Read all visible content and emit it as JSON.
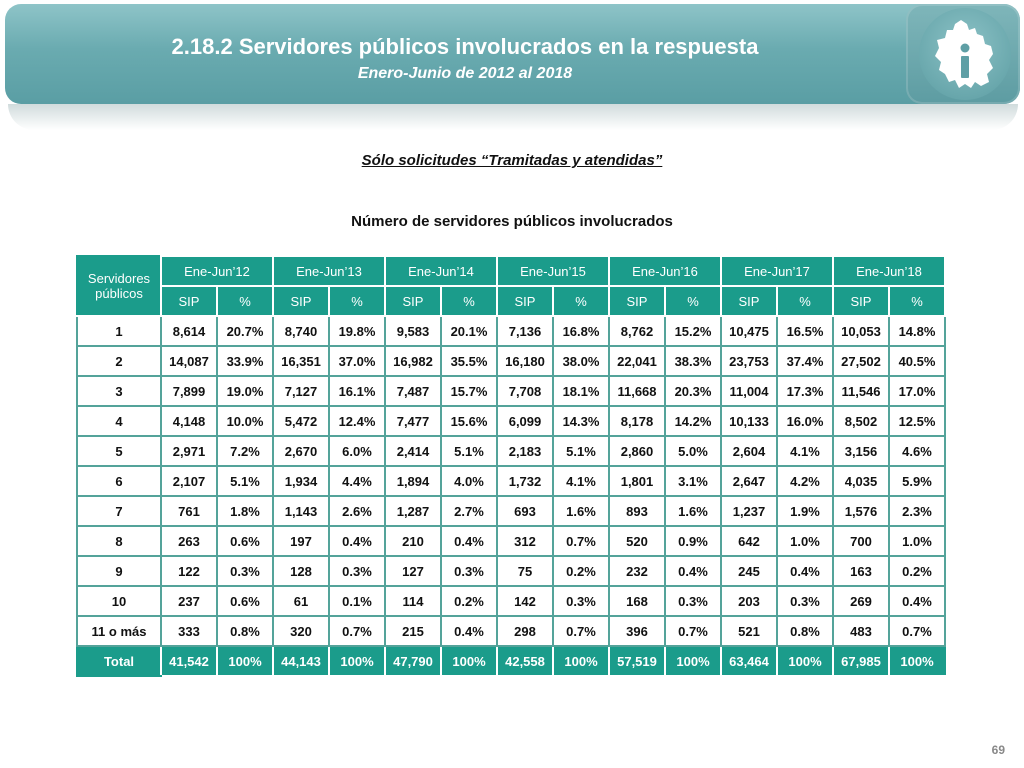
{
  "header": {
    "title": "2.18.2 Servidores públicos involucrados en la respuesta",
    "subtitle": "Enero-Junio de 2012 al 2018",
    "logo_icon": "cdmx-map-logo-icon"
  },
  "note": "Sólo solicitudes “Tramitadas y atendidas”",
  "table_caption": "Número de servidores públicos involucrados",
  "table": {
    "row_header": "Servidores públicos",
    "periods": [
      "Ene-Jun’12",
      "Ene-Jun’13",
      "Ene-Jun’14",
      "Ene-Jun’15",
      "Ene-Jun’16",
      "Ene-Jun’17",
      "Ene-Jun’18"
    ],
    "sub_headers": [
      "SIP",
      "%"
    ],
    "rows": [
      {
        "label": "1",
        "cells": [
          "8,614",
          "20.7%",
          "8,740",
          "19.8%",
          "9,583",
          "20.1%",
          "7,136",
          "16.8%",
          "8,762",
          "15.2%",
          "10,475",
          "16.5%",
          "10,053",
          "14.8%"
        ]
      },
      {
        "label": "2",
        "cells": [
          "14,087",
          "33.9%",
          "16,351",
          "37.0%",
          "16,982",
          "35.5%",
          "16,180",
          "38.0%",
          "22,041",
          "38.3%",
          "23,753",
          "37.4%",
          "27,502",
          "40.5%"
        ]
      },
      {
        "label": "3",
        "cells": [
          "7,899",
          "19.0%",
          "7,127",
          "16.1%",
          "7,487",
          "15.7%",
          "7,708",
          "18.1%",
          "11,668",
          "20.3%",
          "11,004",
          "17.3%",
          "11,546",
          "17.0%"
        ]
      },
      {
        "label": "4",
        "cells": [
          "4,148",
          "10.0%",
          "5,472",
          "12.4%",
          "7,477",
          "15.6%",
          "6,099",
          "14.3%",
          "8,178",
          "14.2%",
          "10,133",
          "16.0%",
          "8,502",
          "12.5%"
        ]
      },
      {
        "label": "5",
        "cells": [
          "2,971",
          "7.2%",
          "2,670",
          "6.0%",
          "2,414",
          "5.1%",
          "2,183",
          "5.1%",
          "2,860",
          "5.0%",
          "2,604",
          "4.1%",
          "3,156",
          "4.6%"
        ]
      },
      {
        "label": "6",
        "cells": [
          "2,107",
          "5.1%",
          "1,934",
          "4.4%",
          "1,894",
          "4.0%",
          "1,732",
          "4.1%",
          "1,801",
          "3.1%",
          "2,647",
          "4.2%",
          "4,035",
          "5.9%"
        ]
      },
      {
        "label": "7",
        "cells": [
          "761",
          "1.8%",
          "1,143",
          "2.6%",
          "1,287",
          "2.7%",
          "693",
          "1.6%",
          "893",
          "1.6%",
          "1,237",
          "1.9%",
          "1,576",
          "2.3%"
        ]
      },
      {
        "label": "8",
        "cells": [
          "263",
          "0.6%",
          "197",
          "0.4%",
          "210",
          "0.4%",
          "312",
          "0.7%",
          "520",
          "0.9%",
          "642",
          "1.0%",
          "700",
          "1.0%"
        ]
      },
      {
        "label": "9",
        "cells": [
          "122",
          "0.3%",
          "128",
          "0.3%",
          "127",
          "0.3%",
          "75",
          "0.2%",
          "232",
          "0.4%",
          "245",
          "0.4%",
          "163",
          "0.2%"
        ]
      },
      {
        "label": "10",
        "cells": [
          "237",
          "0.6%",
          "61",
          "0.1%",
          "114",
          "0.2%",
          "142",
          "0.3%",
          "168",
          "0.3%",
          "203",
          "0.3%",
          "269",
          "0.4%"
        ]
      },
      {
        "label": "11 o más",
        "cells": [
          "333",
          "0.8%",
          "320",
          "0.7%",
          "215",
          "0.4%",
          "298",
          "0.7%",
          "396",
          "0.7%",
          "521",
          "0.8%",
          "483",
          "0.7%"
        ]
      }
    ],
    "total": {
      "label": "Total",
      "cells": [
        "41,542",
        "100%",
        "44,143",
        "100%",
        "47,790",
        "100%",
        "42,558",
        "100%",
        "57,519",
        "100%",
        "63,464",
        "100%",
        "67,985",
        "100%"
      ]
    }
  },
  "page_number": "69",
  "colors": {
    "header_bg": "#6aabb0",
    "table_header_bg": "#1b9c8b",
    "table_border": "#54a39a"
  }
}
